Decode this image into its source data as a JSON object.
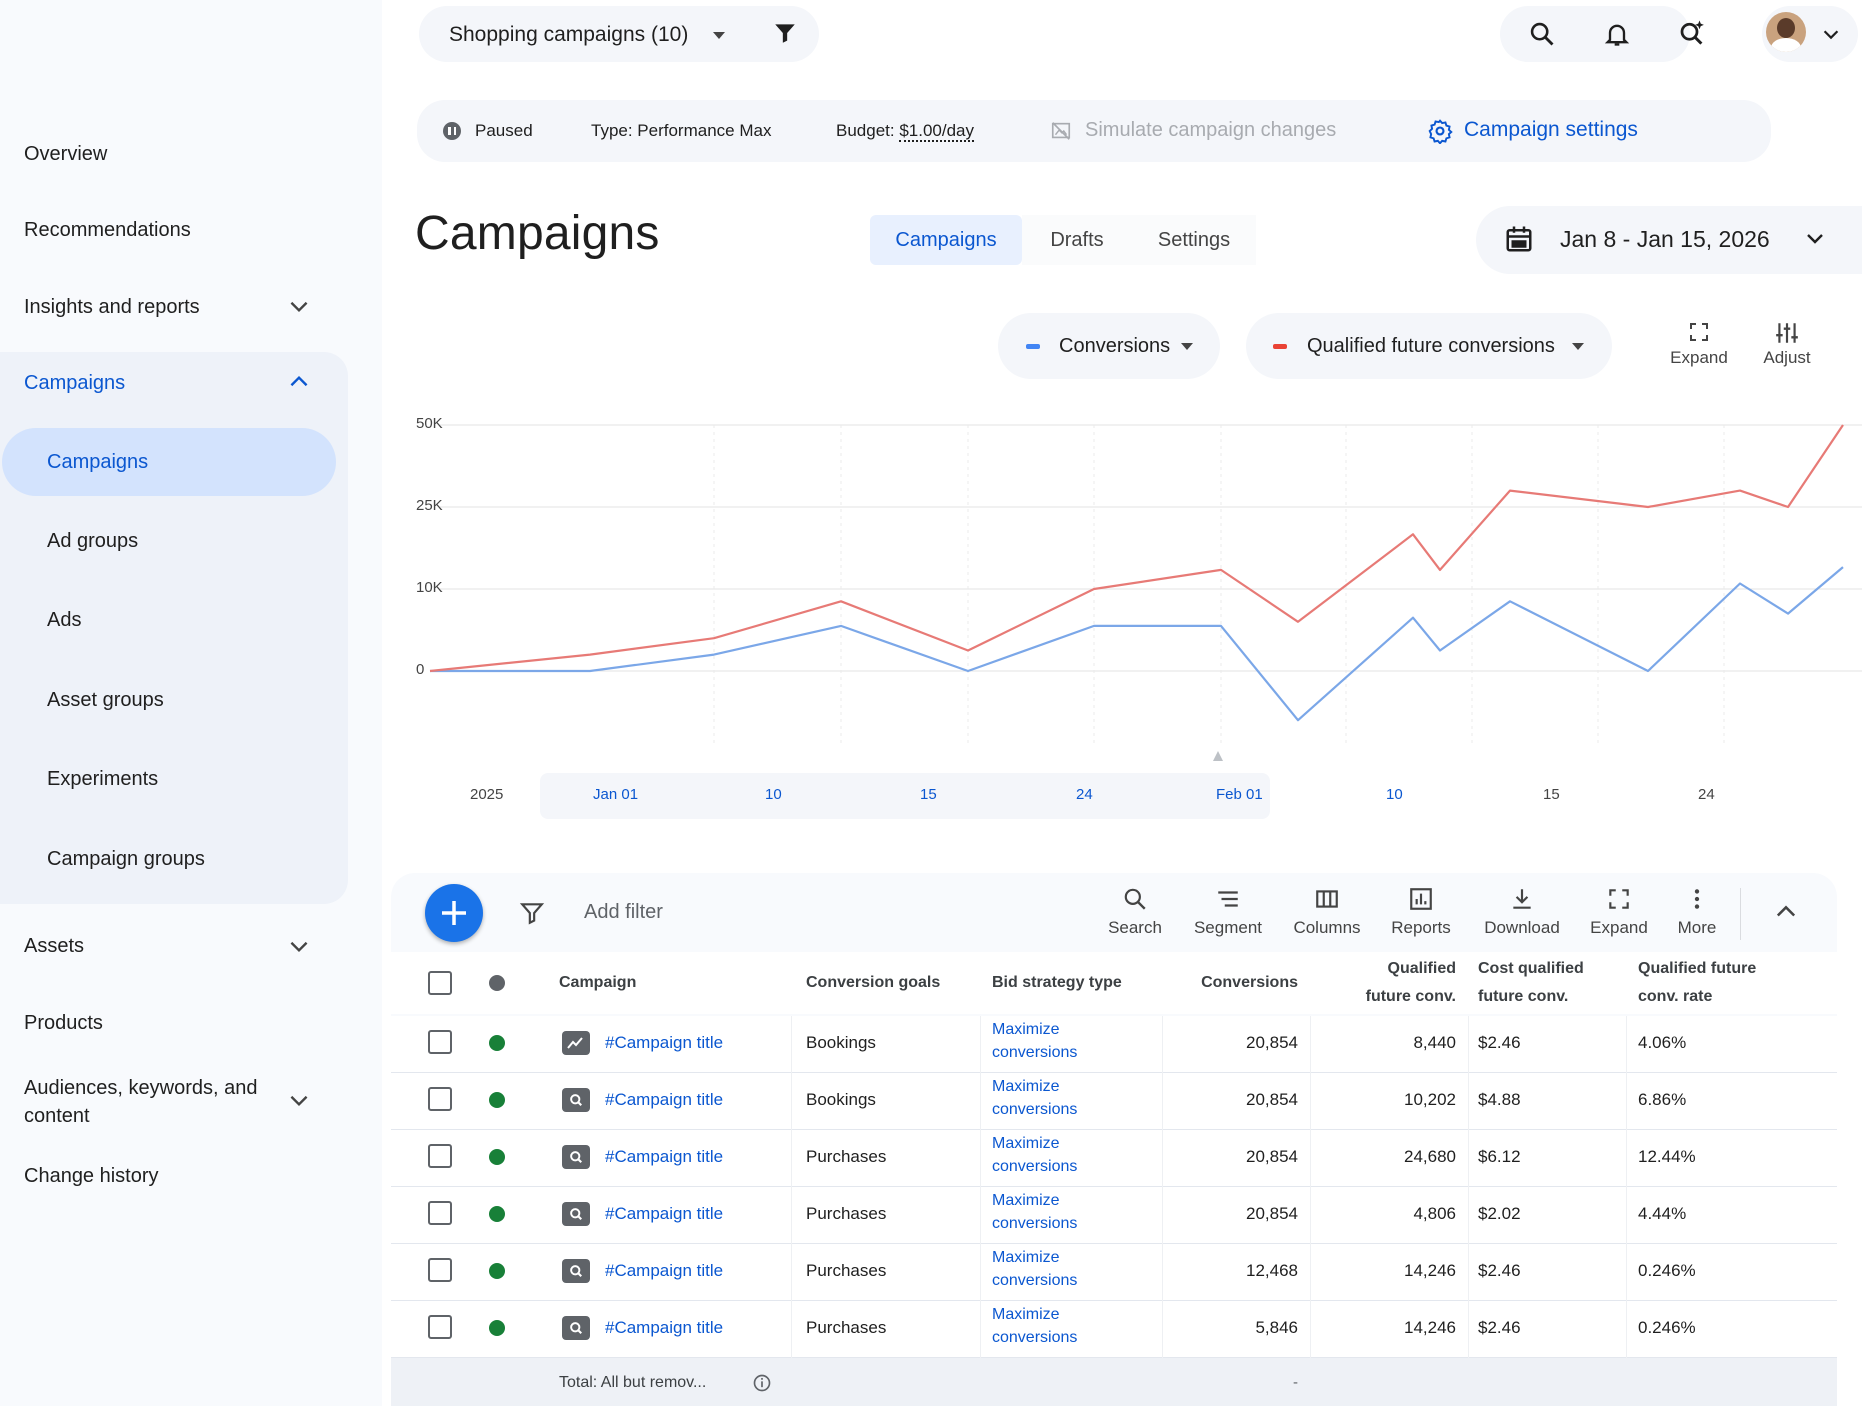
{
  "sidebar": {
    "overview": "Overview",
    "recommendations": "Recommendations",
    "insights": "Insights and reports",
    "campaigns_group": "Campaigns",
    "sub_campaigns": "Campaigns",
    "sub_ad_groups": "Ad groups",
    "sub_ads": "Ads",
    "sub_asset_groups": "Asset groups",
    "sub_experiments": "Experiments",
    "sub_campaign_groups": "Campaign groups",
    "assets": "Assets",
    "products": "Products",
    "audiences_line1": "Audiences, keywords, and",
    "audiences_line2": "content",
    "change_history": "Change history"
  },
  "topbar": {
    "campaign_selector": "Shopping campaigns (10)"
  },
  "status": {
    "state": "Paused",
    "type": "Type: Performance Max",
    "budget_label": "Budget: ",
    "budget_value": "$1.00/day",
    "simulate": "Simulate campaign changes",
    "settings": "Campaign settings"
  },
  "page": {
    "title": "Campaigns",
    "tabs": [
      "Campaigns",
      "Drafts",
      "Settings"
    ],
    "date_range": "Jan 8 - Jan 15, 2026"
  },
  "chart_controls": {
    "metric1": "Conversions",
    "metric2": "Qualified future conversions",
    "expand": "Expand",
    "adjust": "Adjust",
    "metric1_color": "#4285f4",
    "metric2_color": "#ea4335"
  },
  "chart_data": {
    "type": "line",
    "y_ticks": [
      "50K",
      "25K",
      "10K",
      "0"
    ],
    "x_ticks": [
      "2025",
      "Jan 01",
      "10",
      "15",
      "24",
      "Feb 01",
      "10",
      "15",
      "24"
    ],
    "x_highlighted_ticks": [
      "Jan 01",
      "10",
      "15",
      "24",
      "Feb 01",
      "10"
    ],
    "series": [
      {
        "name": "Conversions",
        "color": "#7ba7e8",
        "values": [
          0,
          0,
          2000,
          5500,
          0,
          5500,
          5500,
          -6000,
          6500,
          2500,
          8500,
          0,
          11000,
          7000,
          14000
        ]
      },
      {
        "name": "Qualified future conversions",
        "color": "#e77a76",
        "values": [
          0,
          2000,
          4000,
          8500,
          2500,
          10000,
          13500,
          6000,
          20000,
          13500,
          30000,
          25000,
          30000,
          25000,
          50000
        ]
      }
    ]
  },
  "table": {
    "add_filter": "Add filter",
    "tools": [
      "Search",
      "Segment",
      "Columns",
      "Reports",
      "Download",
      "Expand",
      "More"
    ],
    "headers": {
      "campaign": "Campaign",
      "goals": "Conversion goals",
      "bid": "Bid strategy type",
      "conversions": "Conversions",
      "qfc_1": "Qualified",
      "qfc_2": "future conv.",
      "cost_1": "Cost qualified",
      "cost_2": "future conv.",
      "rate_1": "Qualified future",
      "rate_2": "conv. rate"
    },
    "rows": [
      {
        "campaign": "#Campaign title",
        "goal": "Bookings",
        "bid1": "Maximize",
        "bid2": "conversions",
        "conversions": "20,854",
        "qfc": "8,440",
        "cost": "$2.46",
        "rate": "4.06%",
        "icon": "trend-icon"
      },
      {
        "campaign": "#Campaign title",
        "goal": "Bookings",
        "bid1": "Maximize",
        "bid2": "conversions",
        "conversions": "20,854",
        "qfc": "10,202",
        "cost": "$4.88",
        "rate": "6.86%",
        "icon": "search-campaign-icon"
      },
      {
        "campaign": "#Campaign title",
        "goal": "Purchases",
        "bid1": "Maximize",
        "bid2": "conversions",
        "conversions": "20,854",
        "qfc": "24,680",
        "cost": "$6.12",
        "rate": "12.44%",
        "icon": "search-campaign-icon"
      },
      {
        "campaign": "#Campaign title",
        "goal": "Purchases",
        "bid1": "Maximize",
        "bid2": "conversions",
        "conversions": "20,854",
        "qfc": "4,806",
        "cost": "$2.02",
        "rate": "4.44%",
        "icon": "search-campaign-icon"
      },
      {
        "campaign": "#Campaign title",
        "goal": "Purchases",
        "bid1": "Maximize",
        "bid2": "conversions",
        "conversions": "12,468",
        "qfc": "14,246",
        "cost": "$2.46",
        "rate": "0.246%",
        "icon": "search-campaign-icon"
      },
      {
        "campaign": "#Campaign title",
        "goal": "Purchases",
        "bid1": "Maximize",
        "bid2": "conversions",
        "conversions": "5,846",
        "qfc": "14,246",
        "cost": "$2.46",
        "rate": "0.246%",
        "icon": "search-campaign-icon"
      }
    ],
    "total_label": "Total: All but remov...",
    "total_conversions": "-"
  },
  "colors": {
    "accent": "#0b57d0",
    "active_nav_bg": "#d3e3fd",
    "status_green": "#188038",
    "fab": "#1a73e8"
  }
}
